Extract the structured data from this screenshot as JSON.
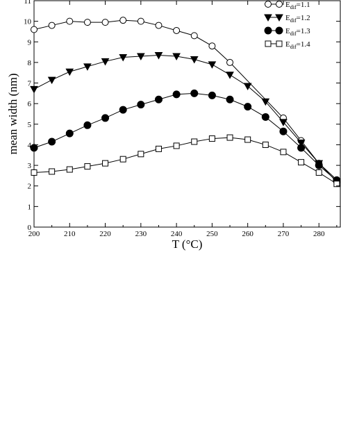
{
  "chart_data": {
    "type": "line",
    "title": "",
    "xlabel": "T (°C)",
    "ylabel": "mean width (nm)",
    "xlim": [
      200,
      286
    ],
    "ylim": [
      0,
      11
    ],
    "xticks": [
      200,
      210,
      220,
      230,
      240,
      250,
      260,
      270,
      280
    ],
    "yticks": [
      0,
      1,
      2,
      3,
      4,
      5,
      6,
      7,
      8,
      9,
      10,
      11
    ],
    "grid": false,
    "legend_position": "top-right",
    "series": [
      {
        "name_base": "E",
        "name_sub": "dif",
        "name_value": "=1.1",
        "marker": "open-circle",
        "x": [
          200,
          205,
          210,
          215,
          220,
          225,
          230,
          235,
          240,
          245,
          250,
          255,
          270,
          275,
          280,
          285
        ],
        "y": [
          9.6,
          9.8,
          10.0,
          9.95,
          9.95,
          10.05,
          10.0,
          9.8,
          9.55,
          9.3,
          8.8,
          8.0,
          5.3,
          4.2,
          3.1,
          2.3
        ]
      },
      {
        "name_base": "E",
        "name_sub": "dif",
        "name_value": "=1.2",
        "marker": "filled-triangle-down",
        "x": [
          200,
          205,
          210,
          215,
          220,
          225,
          230,
          235,
          240,
          245,
          250,
          255,
          260,
          265,
          270,
          275,
          280,
          285
        ],
        "y": [
          6.7,
          7.15,
          7.55,
          7.8,
          8.05,
          8.25,
          8.3,
          8.35,
          8.3,
          8.15,
          7.9,
          7.4,
          6.85,
          6.1,
          5.1,
          4.1,
          3.1,
          2.2
        ]
      },
      {
        "name_base": "E",
        "name_sub": "dif",
        "name_value": "=1.3",
        "marker": "filled-circle",
        "x": [
          200,
          205,
          210,
          215,
          220,
          225,
          230,
          235,
          240,
          245,
          250,
          255,
          260,
          265,
          270,
          275,
          280,
          285
        ],
        "y": [
          3.85,
          4.15,
          4.55,
          4.95,
          5.3,
          5.7,
          5.95,
          6.2,
          6.45,
          6.5,
          6.4,
          6.2,
          5.85,
          5.35,
          4.65,
          3.85,
          3.0,
          2.25
        ]
      },
      {
        "name_base": "E",
        "name_sub": "dif",
        "name_value": "=1.4",
        "marker": "open-square",
        "x": [
          200,
          205,
          210,
          215,
          220,
          225,
          230,
          235,
          240,
          245,
          250,
          255,
          260,
          265,
          270,
          275,
          280,
          285
        ],
        "y": [
          2.65,
          2.7,
          2.8,
          2.95,
          3.1,
          3.3,
          3.55,
          3.8,
          3.95,
          4.15,
          4.3,
          4.35,
          4.25,
          4.0,
          3.65,
          3.15,
          2.65,
          2.1
        ]
      }
    ]
  }
}
